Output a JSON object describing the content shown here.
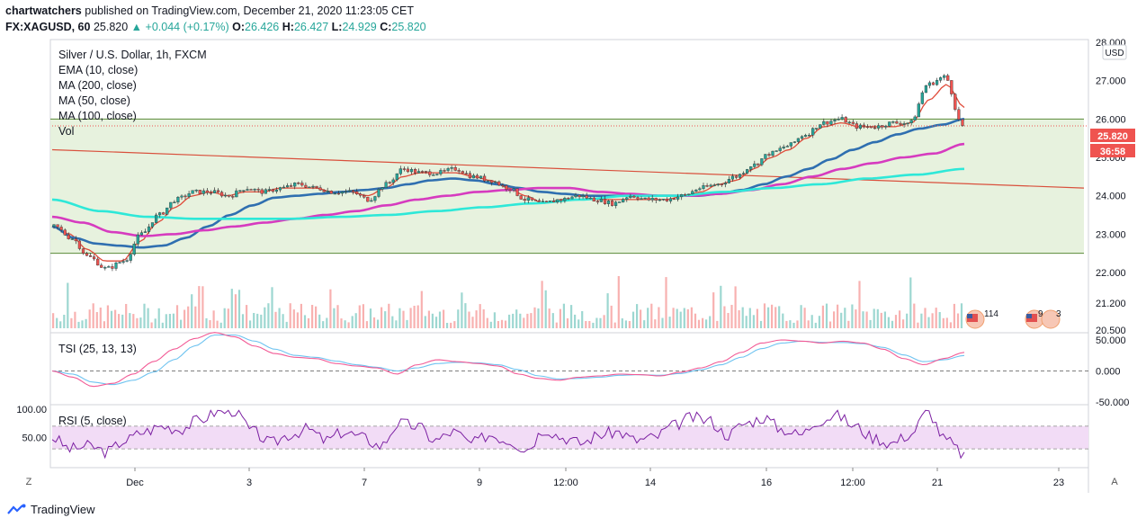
{
  "header": {
    "publisher": "chartwatchers",
    "published_text": "published on TradingView.com, December 21, 2020 11:23:05 CET",
    "symbol": "FX:XAGUSD, 60",
    "last": "25.820",
    "change": "+0.044 (+0.17%)",
    "open_label": "O:",
    "open": "26.426",
    "high_label": "H:",
    "high": "26.427",
    "low_label": "L:",
    "low": "24.929",
    "close_label": "C:",
    "close": "25.820"
  },
  "legend": {
    "title": "Silver / U.S. Dollar, 1h, FXCM",
    "ema10": "EMA (10, close)",
    "ma200": "MA (200, close)",
    "ma50": "MA (50, close)",
    "ma100": "MA (100, close)",
    "vol": "Vol"
  },
  "currency": "USD",
  "price_label": "25.820",
  "countdown_label": "36:58",
  "event_labels": [
    "114",
    "9",
    "3"
  ],
  "tsi_title": "TSI (25, 13, 13)",
  "rsi_title": "RSI (5, close)",
  "corner_left": "Z",
  "corner_right": "A",
  "footer_brand": "TradingView",
  "colors": {
    "ema": "#e04b3a",
    "ma200": "#2ee8d8",
    "ma50": "#2f6fb0",
    "ma100": "#d63bbf",
    "trendline": "#d9503c",
    "zone_fill": "#e3f0d8",
    "zone_line": "#5a8a3a",
    "up": "#26a69a",
    "down": "#ef5350",
    "tsi": "#f25a95",
    "tsi_signal": "#6ec3f0",
    "rsi": "#7b1fa2",
    "rsi_band": "#f2dcf6",
    "price_tag": "#ef5350"
  },
  "chart_data": {
    "type": "line",
    "title": "Silver / U.S. Dollar, 1h, FXCM",
    "x_ticks": [
      "Dec",
      "3",
      "7",
      "9",
      "12:00",
      "14",
      "16",
      "12:00",
      "21",
      "23"
    ],
    "y_ticks": [
      "28.000",
      "27.000",
      "26.000",
      "25.000",
      "24.000",
      "23.000",
      "22.000",
      "21.200",
      "20.500"
    ],
    "ylim": [
      20.5,
      28.0
    ],
    "support_resistance_zone": [
      22.5,
      26.0
    ],
    "trendline": {
      "start": 25.2,
      "end": 24.2
    },
    "series": [
      {
        "name": "Price (close)",
        "values": [
          23.2,
          22.9,
          22.4,
          22.1,
          22.3,
          23.0,
          23.5,
          23.9,
          24.1,
          24.1,
          24.0,
          24.2,
          24.1,
          24.2,
          24.3,
          24.2,
          24.1,
          24.1,
          23.9,
          24.3,
          24.7,
          24.6,
          24.6,
          24.7,
          24.5,
          24.4,
          24.2,
          23.9,
          23.8,
          23.9,
          24.0,
          23.9,
          23.8,
          24.0,
          23.9,
          23.9,
          24.0,
          24.2,
          24.3,
          24.5,
          24.8,
          25.1,
          25.3,
          25.6,
          25.9,
          26.0,
          25.8,
          25.8,
          25.9,
          25.9,
          26.9,
          27.1,
          25.82
        ]
      },
      {
        "name": "EMA (10, close)",
        "values": [
          23.2,
          23.0,
          22.6,
          22.3,
          22.3,
          22.8,
          23.3,
          23.7,
          24.0,
          24.1,
          24.0,
          24.1,
          24.1,
          24.2,
          24.2,
          24.2,
          24.1,
          24.1,
          24.0,
          24.2,
          24.5,
          24.6,
          24.6,
          24.6,
          24.5,
          24.4,
          24.2,
          24.0,
          23.8,
          23.9,
          23.9,
          23.9,
          23.9,
          23.9,
          23.9,
          23.9,
          24.0,
          24.1,
          24.3,
          24.4,
          24.7,
          25.0,
          25.2,
          25.5,
          25.8,
          25.9,
          25.8,
          25.8,
          25.8,
          25.9,
          26.5,
          26.9,
          26.3
        ]
      },
      {
        "name": "MA (50, close)",
        "values": [
          23.2,
          22.9,
          22.75,
          22.7,
          22.65,
          22.7,
          22.9,
          23.2,
          23.5,
          23.75,
          23.95,
          24.0,
          24.05,
          24.1,
          24.15,
          24.2,
          24.3,
          24.4,
          24.45,
          24.4,
          24.3,
          24.2,
          24.1,
          24.05,
          24.0,
          24.0,
          24.0,
          24.0,
          24.0,
          24.0,
          24.05,
          24.15,
          24.3,
          24.5,
          24.7,
          24.95,
          25.2,
          25.4,
          25.6,
          25.75,
          25.85,
          26.0
        ]
      },
      {
        "name": "MA (100, close)",
        "values": [
          23.45,
          23.3,
          23.05,
          22.95,
          23.0,
          23.1,
          23.2,
          23.3,
          23.4,
          23.5,
          23.6,
          23.75,
          23.9,
          24.0,
          24.1,
          24.15,
          24.2,
          24.2,
          24.1,
          24.05,
          24.0,
          24.0,
          24.05,
          24.15,
          24.3,
          24.5,
          24.7,
          24.85,
          25.0,
          25.1,
          25.35
        ]
      },
      {
        "name": "MA (200, close)",
        "values": [
          23.9,
          23.6,
          23.45,
          23.4,
          23.4,
          23.4,
          23.45,
          23.5,
          23.6,
          23.7,
          23.8,
          23.9,
          24.0,
          24.0,
          24.1,
          24.2,
          24.3,
          24.45,
          24.55,
          24.7
        ]
      }
    ],
    "indicators": [
      {
        "name": "TSI (25, 13, 13)",
        "y_ticks": [
          "50.000",
          "0.000",
          "-50.000"
        ],
        "ylim": [
          -50,
          50
        ],
        "values": [
          0,
          -10,
          -25,
          -20,
          -5,
          15,
          35,
          52,
          62,
          55,
          40,
          28,
          22,
          20,
          12,
          8,
          5,
          -5,
          10,
          18,
          15,
          12,
          8,
          -5,
          -12,
          -15,
          -10,
          -8,
          -5,
          -6,
          -8,
          -2,
          5,
          15,
          30,
          45,
          50,
          48,
          45,
          48,
          45,
          35,
          20,
          10,
          20,
          30
        ],
        "signal": [
          0,
          -5,
          -18,
          -22,
          -15,
          -2,
          18,
          40,
          58,
          58,
          48,
          35,
          25,
          22,
          16,
          10,
          6,
          0,
          5,
          12,
          14,
          13,
          10,
          2,
          -8,
          -13,
          -12,
          -10,
          -7,
          -6,
          -7,
          -4,
          2,
          10,
          22,
          36,
          45,
          48,
          46,
          46,
          44,
          38,
          26,
          15,
          18,
          25
        ]
      },
      {
        "name": "RSI (5, close)",
        "y_ticks": [
          "100.00",
          "50.00"
        ],
        "ylim": [
          0,
          100
        ],
        "bands": [
          30,
          70
        ],
        "values": [
          50,
          30,
          35,
          25,
          45,
          60,
          70,
          65,
          80,
          95,
          98,
          60,
          40,
          55,
          65,
          45,
          60,
          50,
          35,
          75,
          70,
          45,
          60,
          40,
          55,
          45,
          30,
          65,
          50,
          40,
          55,
          60,
          45,
          50,
          70,
          85,
          80,
          55,
          75,
          85,
          65,
          55,
          80,
          90,
          70,
          50,
          40,
          55,
          95,
          45,
          20
        ]
      }
    ]
  }
}
